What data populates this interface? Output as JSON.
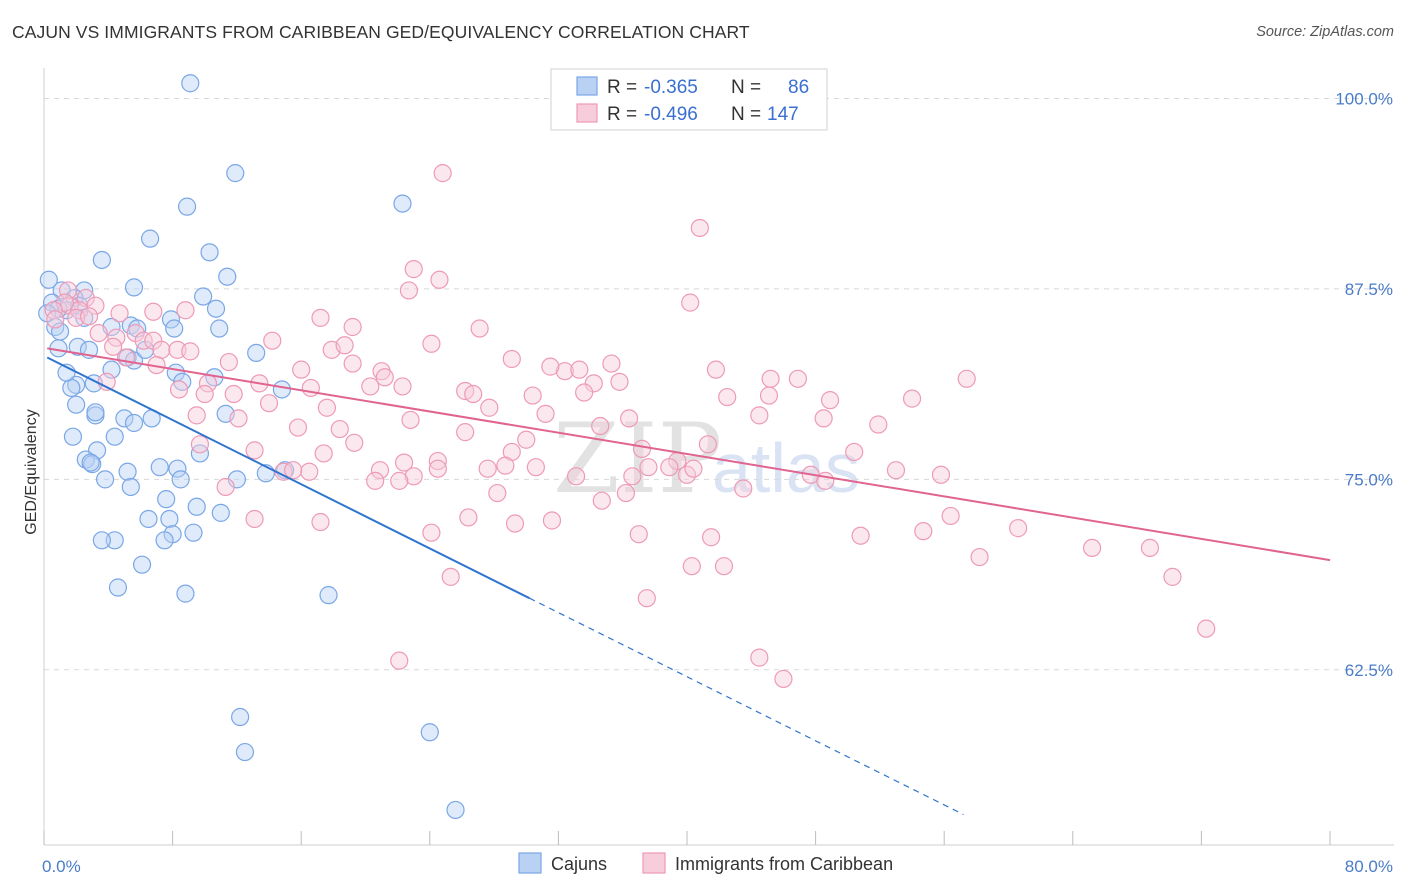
{
  "header": {
    "title": "CAJUN VS IMMIGRANTS FROM CARIBBEAN GED/EQUIVALENCY CORRELATION CHART",
    "source": "Source: ZipAtlas.com"
  },
  "watermark": {
    "text_zip": "ZIP",
    "text_atlas": "atlas"
  },
  "colors": {
    "cajun": "#7aa7e6",
    "cajun_fill": "#b9d1f3",
    "cajun_line": "#2f74d0",
    "caribbean": "#ee9ab6",
    "caribbean_fill": "#f7ccdb",
    "caribbean_line": "#e0648f",
    "tick_text": "#4a7cc9",
    "grid": "#d8d8d8"
  },
  "stats": [
    {
      "r_label": "R =",
      "r_value": "-0.365",
      "n_label": "N =",
      "n_value": "86"
    },
    {
      "r_label": "R =",
      "r_value": "-0.496",
      "n_label": "N =",
      "n_value": "147"
    }
  ],
  "chart_data": {
    "type": "scatter",
    "title": "CAJUN VS IMMIGRANTS FROM CARIBBEAN GED/EQUIVALENCY CORRELATION CHART",
    "xlabel": "",
    "ylabel": "GED/Equivalency",
    "xlim": [
      0,
      80
    ],
    "ylim": [
      51,
      102
    ],
    "x_tick_labels": [
      "0.0%",
      "80.0%"
    ],
    "y_ticks": [
      62.5,
      75.0,
      87.5,
      100.0
    ],
    "y_tick_labels": [
      "62.5%",
      "75.0%",
      "87.5%",
      "100.0%"
    ],
    "grid": "horizontal dashed",
    "legend_position": "bottom",
    "series": [
      {
        "name": "Cajuns",
        "trend": {
          "x0": 0.2,
          "y0": 83.0,
          "x1": 30.2,
          "y1": 67.2,
          "dash_to_x": 57.2,
          "dash_to_y": 53.0
        },
        "points": [
          [
            9.1,
            101.0
          ],
          [
            11.9,
            95.1
          ],
          [
            22.3,
            93.1
          ],
          [
            8.9,
            92.9
          ],
          [
            6.6,
            90.8
          ],
          [
            10.3,
            89.9
          ],
          [
            3.6,
            89.4
          ],
          [
            11.4,
            88.3
          ],
          [
            0.3,
            88.1
          ],
          [
            1.1,
            87.4
          ],
          [
            0.5,
            86.6
          ],
          [
            2.5,
            87.4
          ],
          [
            1.9,
            86.9
          ],
          [
            1.4,
            86.1
          ],
          [
            5.6,
            87.6
          ],
          [
            9.9,
            87.0
          ],
          [
            0.9,
            86.2
          ],
          [
            2.2,
            86.4
          ],
          [
            0.2,
            85.9
          ],
          [
            7.9,
            85.5
          ],
          [
            0.7,
            85.0
          ],
          [
            4.2,
            85.0
          ],
          [
            8.1,
            84.9
          ],
          [
            10.9,
            84.9
          ],
          [
            5.4,
            85.1
          ],
          [
            0.9,
            83.6
          ],
          [
            2.1,
            83.7
          ],
          [
            2.8,
            83.5
          ],
          [
            13.2,
            83.3
          ],
          [
            5.2,
            83.0
          ],
          [
            5.6,
            82.8
          ],
          [
            4.2,
            82.2
          ],
          [
            8.2,
            82.0
          ],
          [
            10.6,
            81.7
          ],
          [
            2.0,
            81.2
          ],
          [
            3.1,
            81.3
          ],
          [
            1.7,
            81.0
          ],
          [
            8.6,
            81.4
          ],
          [
            14.8,
            80.9
          ],
          [
            2.0,
            79.9
          ],
          [
            3.2,
            79.2
          ],
          [
            5.0,
            79.0
          ],
          [
            11.3,
            79.3
          ],
          [
            6.7,
            79.0
          ],
          [
            3.2,
            79.4
          ],
          [
            1.8,
            77.8
          ],
          [
            5.6,
            78.7
          ],
          [
            3.3,
            76.9
          ],
          [
            4.4,
            77.8
          ],
          [
            2.6,
            76.3
          ],
          [
            3.0,
            76.0
          ],
          [
            9.7,
            76.7
          ],
          [
            2.9,
            76.1
          ],
          [
            7.2,
            75.8
          ],
          [
            8.3,
            75.7
          ],
          [
            5.2,
            75.5
          ],
          [
            8.5,
            75.0
          ],
          [
            3.8,
            75.0
          ],
          [
            13.8,
            75.4
          ],
          [
            12.0,
            75.0
          ],
          [
            15.0,
            75.6
          ],
          [
            5.4,
            74.5
          ],
          [
            7.6,
            73.7
          ],
          [
            9.5,
            73.2
          ],
          [
            11.0,
            72.8
          ],
          [
            7.8,
            72.4
          ],
          [
            8.0,
            71.4
          ],
          [
            6.5,
            72.4
          ],
          [
            9.3,
            71.5
          ],
          [
            4.4,
            71.0
          ],
          [
            3.6,
            71.0
          ],
          [
            7.5,
            71.0
          ],
          [
            6.1,
            69.4
          ],
          [
            4.6,
            67.9
          ],
          [
            8.8,
            67.5
          ],
          [
            17.7,
            67.4
          ],
          [
            12.2,
            59.4
          ],
          [
            12.5,
            57.1
          ],
          [
            24.0,
            58.4
          ],
          [
            25.6,
            53.3
          ],
          [
            1.0,
            84.7
          ],
          [
            5.8,
            84.9
          ],
          [
            6.3,
            83.5
          ],
          [
            1.4,
            82.0
          ],
          [
            2.5,
            85.6
          ],
          [
            10.7,
            86.2
          ]
        ]
      },
      {
        "name": "Immigrants from Caribbean",
        "trend": {
          "x0": 0.2,
          "y0": 83.6,
          "x1": 80.0,
          "y1": 69.7
        },
        "points": [
          [
            24.8,
            95.1
          ],
          [
            40.8,
            91.5
          ],
          [
            23.0,
            88.8
          ],
          [
            24.6,
            88.1
          ],
          [
            22.7,
            87.4
          ],
          [
            40.2,
            86.6
          ],
          [
            1.5,
            87.4
          ],
          [
            1.6,
            86.4
          ],
          [
            2.6,
            86.9
          ],
          [
            3.2,
            86.4
          ],
          [
            2.2,
            86.1
          ],
          [
            1.3,
            86.6
          ],
          [
            0.6,
            86.1
          ],
          [
            0.7,
            85.5
          ],
          [
            2.0,
            85.6
          ],
          [
            2.8,
            85.7
          ],
          [
            4.7,
            85.9
          ],
          [
            6.8,
            86.0
          ],
          [
            8.8,
            86.1
          ],
          [
            17.2,
            85.6
          ],
          [
            19.2,
            85.0
          ],
          [
            27.1,
            84.9
          ],
          [
            4.5,
            84.3
          ],
          [
            3.4,
            84.6
          ],
          [
            5.7,
            84.6
          ],
          [
            6.2,
            84.1
          ],
          [
            6.8,
            84.1
          ],
          [
            14.2,
            84.1
          ],
          [
            4.3,
            83.7
          ],
          [
            7.3,
            83.5
          ],
          [
            8.3,
            83.5
          ],
          [
            17.9,
            83.5
          ],
          [
            18.7,
            83.8
          ],
          [
            24.1,
            83.9
          ],
          [
            5.1,
            83.0
          ],
          [
            7.0,
            82.5
          ],
          [
            9.1,
            83.4
          ],
          [
            11.5,
            82.7
          ],
          [
            16.0,
            82.2
          ],
          [
            19.2,
            82.6
          ],
          [
            21.0,
            82.1
          ],
          [
            32.4,
            82.1
          ],
          [
            35.3,
            82.6
          ],
          [
            29.1,
            82.9
          ],
          [
            31.5,
            82.4
          ],
          [
            33.3,
            82.2
          ],
          [
            41.8,
            82.2
          ],
          [
            3.9,
            81.4
          ],
          [
            10.2,
            81.3
          ],
          [
            13.4,
            81.3
          ],
          [
            16.6,
            81.0
          ],
          [
            20.3,
            81.1
          ],
          [
            22.3,
            81.1
          ],
          [
            21.2,
            81.7
          ],
          [
            34.2,
            81.3
          ],
          [
            35.8,
            81.4
          ],
          [
            45.2,
            81.6
          ],
          [
            46.9,
            81.6
          ],
          [
            8.4,
            80.9
          ],
          [
            10.0,
            80.6
          ],
          [
            11.8,
            80.6
          ],
          [
            26.2,
            80.8
          ],
          [
            30.4,
            80.5
          ],
          [
            33.6,
            80.7
          ],
          [
            45.1,
            80.5
          ],
          [
            26.7,
            80.6
          ],
          [
            14.0,
            80.0
          ],
          [
            17.6,
            79.7
          ],
          [
            27.7,
            79.7
          ],
          [
            31.2,
            79.3
          ],
          [
            42.5,
            80.4
          ],
          [
            48.9,
            80.2
          ],
          [
            54.0,
            80.3
          ],
          [
            57.4,
            81.6
          ],
          [
            9.5,
            79.2
          ],
          [
            12.1,
            79.0
          ],
          [
            15.8,
            78.4
          ],
          [
            18.4,
            78.3
          ],
          [
            22.8,
            78.9
          ],
          [
            26.2,
            78.1
          ],
          [
            30.0,
            77.6
          ],
          [
            34.6,
            78.5
          ],
          [
            36.4,
            79.0
          ],
          [
            44.5,
            79.2
          ],
          [
            48.5,
            79.0
          ],
          [
            51.9,
            78.6
          ],
          [
            19.3,
            77.4
          ],
          [
            13.1,
            76.9
          ],
          [
            29.1,
            76.8
          ],
          [
            37.2,
            77.0
          ],
          [
            39.4,
            76.2
          ],
          [
            41.3,
            77.3
          ],
          [
            28.7,
            75.9
          ],
          [
            24.5,
            76.2
          ],
          [
            22.4,
            76.1
          ],
          [
            30.6,
            75.8
          ],
          [
            27.6,
            75.7
          ],
          [
            14.9,
            75.5
          ],
          [
            16.5,
            75.5
          ],
          [
            17.4,
            76.7
          ],
          [
            37.6,
            75.8
          ],
          [
            40.0,
            75.3
          ],
          [
            38.9,
            75.8
          ],
          [
            47.7,
            75.3
          ],
          [
            53.0,
            75.6
          ],
          [
            55.8,
            75.3
          ],
          [
            15.5,
            75.6
          ],
          [
            20.9,
            75.6
          ],
          [
            9.7,
            77.3
          ],
          [
            11.3,
            74.5
          ],
          [
            20.6,
            74.9
          ],
          [
            33.1,
            75.2
          ],
          [
            36.6,
            75.2
          ],
          [
            23.0,
            75.2
          ],
          [
            24.5,
            75.7
          ],
          [
            40.4,
            75.7
          ],
          [
            22.1,
            74.9
          ],
          [
            34.7,
            73.6
          ],
          [
            28.2,
            74.1
          ],
          [
            36.2,
            74.1
          ],
          [
            43.5,
            74.4
          ],
          [
            48.6,
            74.9
          ],
          [
            50.4,
            76.8
          ],
          [
            13.1,
            72.4
          ],
          [
            17.2,
            72.2
          ],
          [
            24.1,
            71.5
          ],
          [
            26.4,
            72.5
          ],
          [
            29.3,
            72.1
          ],
          [
            31.6,
            72.3
          ],
          [
            37.0,
            71.4
          ],
          [
            41.5,
            71.2
          ],
          [
            50.8,
            71.3
          ],
          [
            56.4,
            72.6
          ],
          [
            54.7,
            71.6
          ],
          [
            60.6,
            71.8
          ],
          [
            58.2,
            69.9
          ],
          [
            65.2,
            70.5
          ],
          [
            68.8,
            70.5
          ],
          [
            70.2,
            68.6
          ],
          [
            72.3,
            65.2
          ],
          [
            25.3,
            68.6
          ],
          [
            37.5,
            67.2
          ],
          [
            40.3,
            69.3
          ],
          [
            42.3,
            69.3
          ],
          [
            22.1,
            63.1
          ],
          [
            44.5,
            63.3
          ],
          [
            46.0,
            61.9
          ]
        ]
      }
    ]
  },
  "legend": {
    "items": [
      {
        "label": "Cajuns"
      },
      {
        "label": "Immigrants from Caribbean"
      }
    ]
  }
}
